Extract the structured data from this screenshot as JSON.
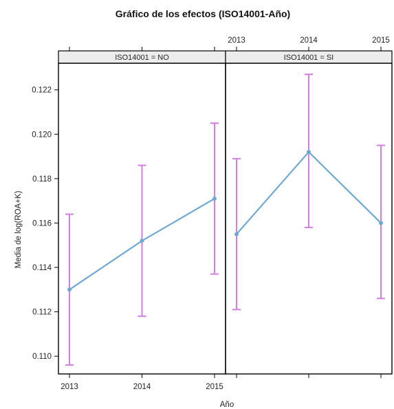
{
  "chart_data": {
    "type": "line",
    "title": "Gráfico de los efectos (ISO14001-Año)",
    "xlabel": "Año",
    "ylabel": "Media de log(ROA+K)",
    "categories": [
      "2013",
      "2014",
      "2015"
    ],
    "ylim": [
      0.1092,
      0.1232
    ],
    "y_ticks": [
      "0.110",
      "0.112",
      "0.114",
      "0.116",
      "0.118",
      "0.120",
      "0.122"
    ],
    "grid": false,
    "colors": {
      "line": "#6fa8d0",
      "error_bar": "#d27ee0",
      "strip_bg": "#ececec"
    },
    "panels": [
      {
        "strip_label": "ISO14001 = NO",
        "means": [
          0.113,
          0.1152,
          0.1171
        ],
        "lower": [
          0.1096,
          0.1118,
          0.1137
        ],
        "upper": [
          0.1164,
          0.1186,
          0.1205
        ]
      },
      {
        "strip_label": "ISO14001 = SI",
        "means": [
          0.1155,
          0.1192,
          0.116
        ],
        "lower": [
          0.1121,
          0.1158,
          0.1126
        ],
        "upper": [
          0.1189,
          0.1227,
          0.1195
        ]
      }
    ]
  }
}
